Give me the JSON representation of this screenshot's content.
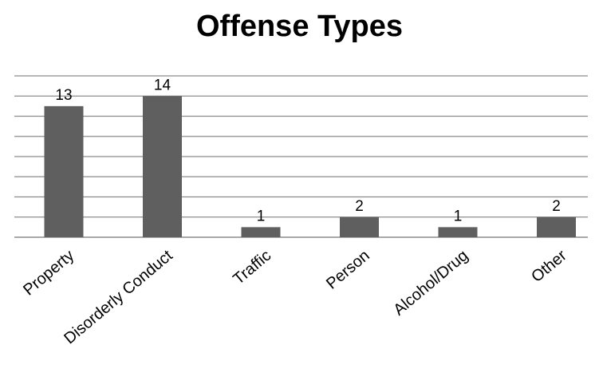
{
  "chart_data": {
    "type": "bar",
    "title": "Offense Types",
    "categories": [
      "Property",
      "Disorderly Conduct",
      "Traffic",
      "Person",
      "Alcohol/Drug",
      "Other"
    ],
    "values": [
      13,
      14,
      1,
      2,
      1,
      2
    ],
    "ylim": [
      0,
      16
    ],
    "ytick_step": 2,
    "grid": true,
    "legend": "none",
    "bar_color": "#5f5f5f",
    "grid_color": "#8c8c8c"
  }
}
